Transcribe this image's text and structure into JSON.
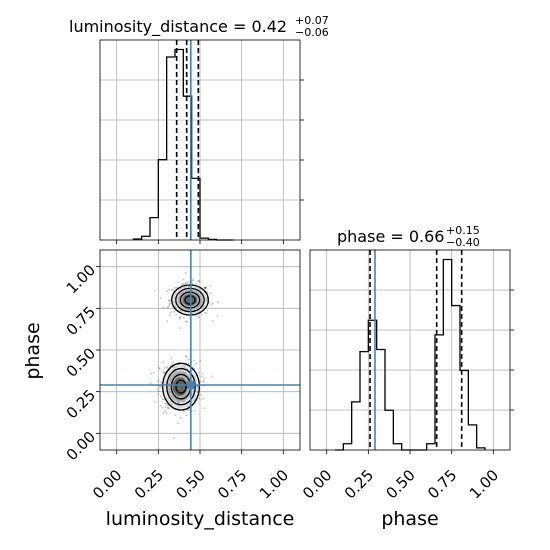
{
  "chart_data": [
    {
      "type": "histogram",
      "parameter": "luminosity_distance",
      "title_main": "luminosity_distance = 0.42",
      "title_sup": "+0.07",
      "title_sub": "−0.06",
      "xlim": [
        -0.1,
        1.1
      ],
      "grid": true,
      "bin_edges": [
        0.1,
        0.15,
        0.2,
        0.25,
        0.3,
        0.35,
        0.4,
        0.45,
        0.5,
        0.55,
        0.6,
        0.65,
        0.7
      ],
      "counts": [
        0.005,
        0.02,
        0.12,
        0.43,
        0.98,
        1.02,
        0.77,
        0.33,
        0.01,
        0.003,
        0,
        0
      ],
      "quantiles": [
        0.36,
        0.42,
        0.49
      ],
      "truth": 0.445
    },
    {
      "type": "histogram",
      "parameter": "phase",
      "title_main": "phase = 0.66",
      "title_sup": "+0.15",
      "title_sub": "−0.40",
      "xlim": [
        -0.1,
        1.1
      ],
      "grid": true,
      "bin_edges": [
        0.05,
        0.1,
        0.15,
        0.2,
        0.25,
        0.3,
        0.35,
        0.4,
        0.45,
        0.5,
        0.55,
        0.6,
        0.65,
        0.7,
        0.75,
        0.8,
        0.85,
        0.9,
        0.95
      ],
      "counts": [
        0.0,
        0.03,
        0.23,
        0.47,
        0.62,
        0.48,
        0.19,
        0.03,
        0.0,
        0.0,
        0.0,
        0.03,
        0.55,
        0.91,
        0.69,
        0.38,
        0.12,
        0.01
      ],
      "quantiles": [
        0.26,
        0.66,
        0.81
      ],
      "truth": 0.29
    },
    {
      "type": "scatter-contour",
      "x_param": "luminosity_distance",
      "y_param": "phase",
      "xlabel": "luminosity_distance",
      "ylabel": "phase",
      "xlim": [
        -0.1,
        1.1
      ],
      "ylim": [
        -0.1,
        1.1
      ],
      "grid": true,
      "xticks": [
        "0.00",
        "0.25",
        "0.50",
        "0.75",
        "1.00"
      ],
      "yticks": [
        "0.00",
        "0.25",
        "0.50",
        "0.75",
        "1.00"
      ],
      "truth": [
        0.445,
        0.29
      ],
      "modes": [
        {
          "x": 0.44,
          "y": 0.8,
          "sx": 0.055,
          "sy": 0.045
        },
        {
          "x": 0.38,
          "y": 0.28,
          "sx": 0.055,
          "sy": 0.07
        }
      ]
    }
  ],
  "xlabel_bottom_right": "phase"
}
